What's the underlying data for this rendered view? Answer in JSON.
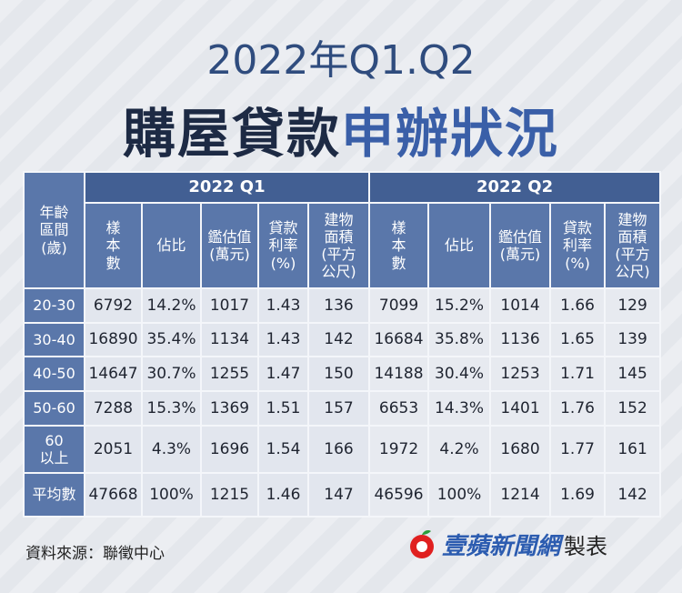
{
  "header": {
    "title": "2022年Q1.Q2",
    "subtitle_dark": "購屋貸款",
    "subtitle_blue": "申辦狀況"
  },
  "table": {
    "corner": "年齡\n區間\n(歲)",
    "groups": [
      "2022 Q1",
      "2022 Q2"
    ],
    "columns": [
      "樣\n本\n數",
      "佔比",
      "鑑估值\n(萬元)",
      "貸款\n利率\n(%)",
      "建物\n面積\n(平方\n公尺)"
    ],
    "rows": [
      {
        "label": "20-30",
        "cells": [
          "6792",
          "14.2%",
          "1017",
          "1.43",
          "136",
          "7099",
          "15.2%",
          "1014",
          "1.66",
          "129"
        ]
      },
      {
        "label": "30-40",
        "cells": [
          "16890",
          "35.4%",
          "1134",
          "1.43",
          "142",
          "16684",
          "35.8%",
          "1136",
          "1.65",
          "139"
        ]
      },
      {
        "label": "40-50",
        "cells": [
          "14647",
          "30.7%",
          "1255",
          "1.47",
          "150",
          "14188",
          "30.4%",
          "1253",
          "1.71",
          "145"
        ]
      },
      {
        "label": "50-60",
        "cells": [
          "7288",
          "15.3%",
          "1369",
          "1.51",
          "157",
          "6653",
          "14.3%",
          "1401",
          "1.76",
          "152"
        ]
      },
      {
        "label": "60\n以上",
        "cells": [
          "2051",
          "4.3%",
          "1696",
          "1.54",
          "166",
          "1972",
          "4.2%",
          "1680",
          "1.77",
          "161"
        ]
      },
      {
        "label": "平均數",
        "cells": [
          "47668",
          "100%",
          "1215",
          "1.46",
          "147",
          "46596",
          "100%",
          "1214",
          "1.69",
          "142"
        ]
      }
    ]
  },
  "footer": {
    "source": "資料來源：聯徵中心",
    "brand": "壹蘋新聞網",
    "made": "製表"
  }
}
